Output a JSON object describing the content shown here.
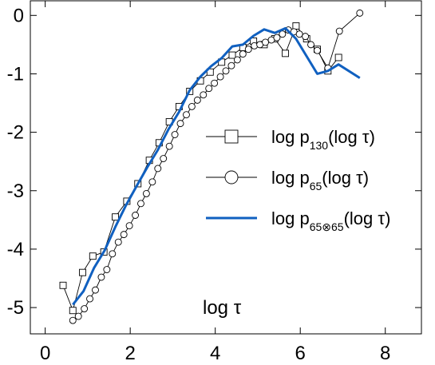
{
  "chart_data": {
    "type": "line",
    "xlabel": "log τ",
    "ylabel": "",
    "xlim": [
      -0.35,
      8.85
    ],
    "ylim": [
      -5.45,
      0.25
    ],
    "xticks": [
      0,
      2,
      4,
      6,
      8
    ],
    "yticks": [
      0,
      -1,
      -2,
      -3,
      -4,
      -5
    ],
    "grid": false,
    "legend_placement": "center-right",
    "series": [
      {
        "name_prefix": "log p",
        "name_subscript": "130",
        "name_suffix": "(log τ)",
        "marker": "square",
        "color": "#000000",
        "points": [
          [
            0.42,
            -4.62
          ],
          [
            0.65,
            -5.05
          ],
          [
            0.88,
            -4.4
          ],
          [
            1.12,
            -4.12
          ],
          [
            1.38,
            -4.05
          ],
          [
            1.65,
            -3.45
          ],
          [
            1.92,
            -3.18
          ],
          [
            2.18,
            -2.88
          ],
          [
            2.45,
            -2.48
          ],
          [
            2.68,
            -2.18
          ],
          [
            2.92,
            -1.82
          ],
          [
            3.15,
            -1.56
          ],
          [
            3.4,
            -1.3
          ],
          [
            3.65,
            -1.12
          ],
          [
            3.88,
            -0.97
          ],
          [
            4.15,
            -0.8
          ],
          [
            4.4,
            -0.68
          ],
          [
            4.65,
            -0.55
          ],
          [
            4.9,
            -0.44
          ],
          [
            5.15,
            -0.5
          ],
          [
            5.4,
            -0.4
          ],
          [
            5.65,
            -0.65
          ],
          [
            5.9,
            -0.18
          ],
          [
            6.15,
            -0.4
          ],
          [
            6.4,
            -0.58
          ],
          [
            6.65,
            -0.95
          ],
          [
            6.9,
            -0.72
          ]
        ]
      },
      {
        "name_prefix": "log p",
        "name_subscript": "65",
        "name_suffix": "(log τ)",
        "marker": "circle",
        "color": "#000000",
        "points": [
          [
            0.65,
            -5.22
          ],
          [
            0.78,
            -5.15
          ],
          [
            0.92,
            -5.02
          ],
          [
            1.05,
            -4.85
          ],
          [
            1.18,
            -4.7
          ],
          [
            1.32,
            -4.48
          ],
          [
            1.45,
            -4.35
          ],
          [
            1.58,
            -4.08
          ],
          [
            1.72,
            -3.88
          ],
          [
            1.85,
            -3.75
          ],
          [
            1.98,
            -3.6
          ],
          [
            2.12,
            -3.42
          ],
          [
            2.25,
            -3.22
          ],
          [
            2.38,
            -3.05
          ],
          [
            2.52,
            -2.85
          ],
          [
            2.65,
            -2.62
          ],
          [
            2.78,
            -2.45
          ],
          [
            2.92,
            -2.24
          ],
          [
            3.05,
            -2.04
          ],
          [
            3.18,
            -1.85
          ],
          [
            3.32,
            -1.7
          ],
          [
            3.45,
            -1.56
          ],
          [
            3.58,
            -1.45
          ],
          [
            3.72,
            -1.36
          ],
          [
            3.85,
            -1.25
          ],
          [
            3.98,
            -1.16
          ],
          [
            4.12,
            -1.05
          ],
          [
            4.25,
            -0.95
          ],
          [
            4.38,
            -0.86
          ],
          [
            4.52,
            -0.76
          ],
          [
            4.65,
            -0.66
          ],
          [
            4.78,
            -0.58
          ],
          [
            4.92,
            -0.52
          ],
          [
            5.05,
            -0.5
          ],
          [
            5.18,
            -0.46
          ],
          [
            5.32,
            -0.42
          ],
          [
            5.45,
            -0.38
          ],
          [
            5.58,
            -0.32
          ],
          [
            5.72,
            -0.25
          ],
          [
            5.85,
            -0.28
          ],
          [
            5.98,
            -0.32
          ],
          [
            6.12,
            -0.36
          ],
          [
            6.25,
            -0.5
          ],
          [
            6.4,
            -0.6
          ],
          [
            6.65,
            -0.9
          ],
          [
            6.92,
            -0.27
          ],
          [
            7.4,
            0.04
          ]
        ]
      },
      {
        "name_prefix": "log p",
        "name_subscript": "65⊗65",
        "name_suffix": "(log τ)",
        "marker": "none",
        "color": "#1060c0",
        "points": [
          [
            0.65,
            -4.95
          ],
          [
            0.9,
            -4.72
          ],
          [
            1.15,
            -4.32
          ],
          [
            1.4,
            -4.02
          ],
          [
            1.65,
            -3.62
          ],
          [
            1.9,
            -3.25
          ],
          [
            2.15,
            -2.92
          ],
          [
            2.4,
            -2.6
          ],
          [
            2.65,
            -2.3
          ],
          [
            2.9,
            -1.95
          ],
          [
            3.15,
            -1.65
          ],
          [
            3.4,
            -1.28
          ],
          [
            3.65,
            -1.05
          ],
          [
            3.9,
            -0.87
          ],
          [
            4.15,
            -0.73
          ],
          [
            4.4,
            -0.53
          ],
          [
            4.65,
            -0.5
          ],
          [
            4.9,
            -0.35
          ],
          [
            5.15,
            -0.24
          ],
          [
            5.4,
            -0.3
          ],
          [
            5.65,
            -0.22
          ],
          [
            5.9,
            -0.4
          ],
          [
            6.15,
            -0.7
          ],
          [
            6.4,
            -1.0
          ],
          [
            6.65,
            -0.95
          ],
          [
            6.9,
            -0.84
          ],
          [
            7.4,
            -1.07
          ]
        ]
      }
    ]
  }
}
